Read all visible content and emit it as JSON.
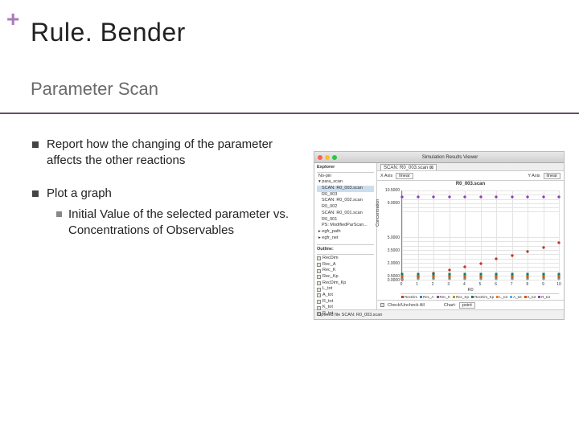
{
  "plus": "+",
  "title": "Rule. Bender",
  "subtitle": "Parameter Scan",
  "bullets": {
    "b1": "Report how the changing of the parameter affects the other reactions",
    "b2": "Plot a graph",
    "b2a": "Initial Value of the selected parameter vs. Concentrations of Observables"
  },
  "accent_color": "#a87db8",
  "rule_color": "#6b4a66",
  "screenshot": {
    "window_title": "Simulation Results Viewer",
    "tab_title": "SCAN: R0_003.scan ⊠",
    "traffic": [
      "#ff5f56",
      "#ffbd2e",
      "#27c93f"
    ],
    "sidebar": {
      "explorer_label": "Explorer",
      "top_item": "No-pin",
      "project": "para_scan",
      "items": [
        "SCAN: R0_003.scan",
        "R0_003",
        "SCAN: R0_002.scan",
        "R0_002",
        "SCAN: R0_001.scan",
        "R0_001",
        "PS: ModifiedParScan..."
      ],
      "egfr_path": "egfr_path",
      "egfr_net": "egfr_net",
      "outline_label": "Outline:",
      "checks": [
        "RecDim",
        "Rec_A",
        "Rec_K",
        "Rec_Kp",
        "RecDim_Kp",
        "L_tot",
        "A_tot",
        "R_tot",
        "K_tot",
        "R_tot"
      ]
    },
    "toolbar": {
      "xaxis_label": "X Axis",
      "xaxis_value": "linear",
      "yaxis_label": "Y Axis",
      "yaxis_value": "linear"
    },
    "plot": {
      "title": "R0_003.scan",
      "xlabel": "R0",
      "ylabel": "Concentration",
      "xlim": [
        0,
        10
      ],
      "xtick_step": 1,
      "ylim": [
        0,
        10500
      ],
      "yticks": [
        10500,
        10000,
        9500,
        9000,
        8500,
        8000,
        5000,
        4500,
        4000,
        3500,
        3000,
        2500,
        2000,
        1500,
        1000,
        500,
        0
      ],
      "grid_color": "#e4e4e4",
      "series": [
        {
          "name": "RecDim",
          "color": "#c0392b",
          "marker": "diamond",
          "y": [
            300,
            650,
            1000,
            1400,
            1800,
            2200,
            2700,
            3100,
            3600,
            4100,
            4600
          ]
        },
        {
          "name": "Rec_A",
          "color": "#2e86c1",
          "marker": "square",
          "y": [
            600,
            600,
            600,
            600,
            600,
            600,
            600,
            600,
            600,
            600,
            600
          ]
        },
        {
          "name": "Rec_K",
          "color": "#884ea0",
          "marker": "square",
          "y": [
            700,
            700,
            700,
            700,
            700,
            700,
            700,
            700,
            700,
            700,
            700
          ]
        },
        {
          "name": "Rec_Kp",
          "color": "#b7950b",
          "marker": "diamond",
          "y": [
            800,
            800,
            800,
            800,
            800,
            800,
            800,
            800,
            800,
            800,
            800
          ]
        },
        {
          "name": "RecDim_Kp",
          "color": "#117864",
          "marker": "square",
          "y": [
            900,
            900,
            900,
            900,
            900,
            900,
            900,
            900,
            900,
            900,
            900
          ]
        },
        {
          "name": "L_tot",
          "color": "#e67e22",
          "marker": "square",
          "y": [
            500,
            500,
            500,
            500,
            500,
            500,
            500,
            500,
            500,
            500,
            500
          ]
        },
        {
          "name": "A_tot",
          "color": "#5dade2",
          "marker": "diamond",
          "y": [
            400,
            400,
            400,
            400,
            400,
            400,
            400,
            400,
            400,
            400,
            400
          ]
        },
        {
          "name": "K_tot",
          "color": "#d35400",
          "marker": "square",
          "y": [
            550,
            550,
            550,
            550,
            550,
            550,
            550,
            550,
            550,
            550,
            550
          ]
        },
        {
          "name": "R_tot",
          "color": "#8e44ad",
          "marker": "diamond",
          "y": [
            10000,
            10000,
            10000,
            10000,
            10000,
            10000,
            10000,
            10000,
            10000,
            10000,
            10000
          ]
        }
      ]
    },
    "check_all": "Check/Uncheck All",
    "chart_label": "Chart:",
    "chart_value": "point",
    "footer": "Opened file SCAN: R0_003.scan"
  }
}
